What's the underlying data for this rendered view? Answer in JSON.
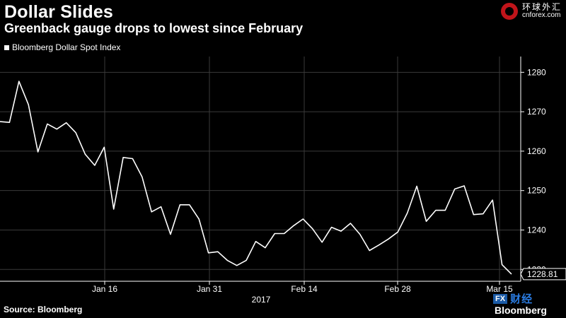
{
  "header": {
    "title": "Dollar Slides",
    "subtitle": "Greenback gauge drops to lowest since February"
  },
  "legend": {
    "label": "Bloomberg Dollar Spot Index"
  },
  "footer": {
    "source": "Source: Bloomberg",
    "brand": "Bloomberg"
  },
  "logo": {
    "cn": "环球外汇",
    "en": "cnforex.com",
    "icon": "cnforex-logo-icon"
  },
  "watermark": {
    "box": "FX",
    "cn": "财经"
  },
  "colors": {
    "background": "#000000",
    "line": "#ffffff",
    "grid": "#3a3a3a",
    "axis": "#ffffff"
  },
  "chart_data": {
    "type": "line",
    "title": "Dollar Slides",
    "subtitle": "Greenback gauge drops to lowest since February",
    "xlabel": "2017",
    "ylabel": "",
    "ylim": [
      1227,
      1284
    ],
    "y_ticks": [
      1230,
      1240,
      1250,
      1260,
      1270,
      1280
    ],
    "x_ticks": [
      "Jan 16",
      "Jan 31",
      "Feb 14",
      "Feb 28",
      "Mar 15"
    ],
    "grid": true,
    "legend_position": "top-left",
    "last_value_label": "1228.81",
    "series": [
      {
        "name": "Bloomberg Dollar Spot Index",
        "values": [
          1267.5,
          1267.3,
          1277.7,
          1271.8,
          1259.8,
          1266.9,
          1265.6,
          1267.2,
          1264.7,
          1259.2,
          1256.4,
          1261.0,
          1245.3,
          1258.4,
          1258.1,
          1253.5,
          1244.6,
          1245.9,
          1238.9,
          1246.4,
          1246.4,
          1242.8,
          1234.2,
          1234.5,
          1232.3,
          1231.0,
          1232.3,
          1237.1,
          1235.5,
          1239.1,
          1239.1,
          1241.1,
          1242.8,
          1240.3,
          1236.9,
          1240.7,
          1239.7,
          1241.7,
          1238.9,
          1234.8,
          1236.2,
          1237.7,
          1239.5,
          1244.3,
          1251.1,
          1242.2,
          1245.0,
          1245.0,
          1250.4,
          1251.2,
          1243.9,
          1244.1,
          1247.6,
          1231.2,
          1228.81
        ]
      }
    ]
  }
}
